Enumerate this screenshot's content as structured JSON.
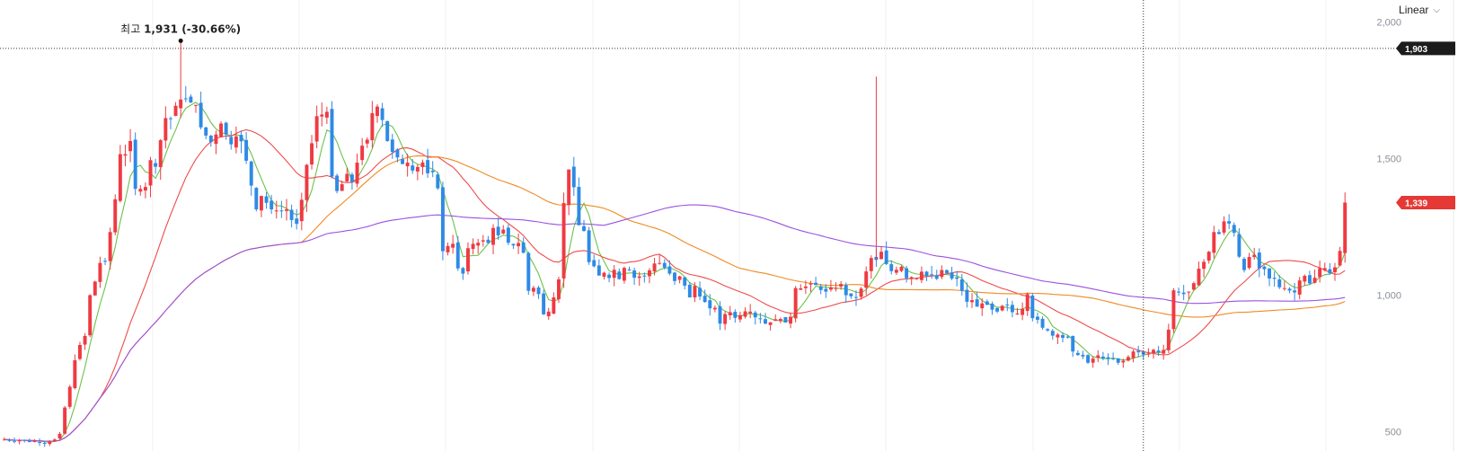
{
  "scale_selector": {
    "label": "Linear"
  },
  "chart_data": {
    "type": "candlestick",
    "y_scale": "linear",
    "ylim": [
      430,
      2080
    ],
    "y_ticks": [
      {
        "value": 2000,
        "label": "2,000"
      },
      {
        "value": 1500,
        "label": "1,500"
      },
      {
        "value": 1000,
        "label": "1,000"
      },
      {
        "value": 500,
        "label": "500"
      }
    ],
    "crosshair_price": {
      "value": 1903,
      "label": "1,903"
    },
    "last_price": {
      "value": 1339,
      "label": "1,339"
    },
    "high_annotation": {
      "prefix": "최고",
      "value_label": "1,931 (-30.66%)",
      "value": 1931,
      "bar_index": 35
    },
    "colors": {
      "up": "#ef3a42",
      "down": "#2e8ae6",
      "ma1": "#6cc24a",
      "ma2": "#ee4b4b",
      "ma3": "#f08a24",
      "ma4": "#9b51e0",
      "last_tag": "#e53935",
      "cross_tag": "#1c1c1c"
    },
    "closes": [
      472,
      470,
      466,
      470,
      468,
      464,
      466,
      462,
      458,
      464,
      472,
      493,
      589,
      665,
      762,
      818,
      851,
      1000,
      1050,
      1118,
      1125,
      1231,
      1351,
      1516,
      1516,
      1564,
      1389,
      1389,
      1396,
      1494,
      1470,
      1567,
      1648,
      1646,
      1693,
      1716,
      1718,
      1705,
      1696,
      1614,
      1584,
      1560,
      1588,
      1628,
      1588,
      1552,
      1581,
      1563,
      1492,
      1401,
      1314,
      1363,
      1338,
      1314,
      1310,
      1309,
      1314,
      1275,
      1261,
      1349,
      1477,
      1556,
      1655,
      1661,
      1671,
      1434,
      1381,
      1406,
      1444,
      1414,
      1485,
      1547,
      1569,
      1666,
      1690,
      1641,
      1564,
      1524,
      1504,
      1480,
      1485,
      1456,
      1469,
      1486,
      1446,
      1450,
      1391,
      1161,
      1180,
      1188,
      1098,
      1079,
      1172,
      1188,
      1192,
      1201,
      1191,
      1246,
      1219,
      1240,
      1192,
      1182,
      1191,
      1155,
      1016,
      1027,
      1004,
      930,
      940,
      992,
      1058,
      1337,
      1460,
      1395,
      1256,
      1235,
      1121,
      1106,
      1072,
      1082,
      1063,
      1093,
      1059,
      1100,
      1092,
      1064,
      1069,
      1070,
      1091,
      1116,
      1118,
      1101,
      1079,
      1052,
      1069,
      1035,
      992,
      1034,
      995,
      975,
      952,
      954,
      896,
      931,
      938,
      917,
      927,
      941,
      940,
      919,
      914,
      896,
      901,
      912,
      913,
      900,
      921,
      1026,
      1025,
      1032,
      1043,
      1037,
      1019,
      1013,
      1028,
      1027,
      1041,
      1000,
      996,
      990,
      1024,
      1087,
      1136,
      1129,
      1159,
      1114,
      1088,
      1093,
      1104,
      1062,
      1066,
      1062,
      1086,
      1071,
      1073,
      1060,
      1092,
      1081,
      1061,
      1060,
      1016,
      976,
      982,
      958,
      970,
      965,
      947,
      940,
      961,
      965,
      938,
      933,
      950,
      1004,
      916,
      910,
      881,
      871,
      852,
      856,
      844,
      845,
      794,
      781,
      776,
      753,
      768,
      780,
      768,
      767,
      766,
      753,
      760,
      774,
      794,
      791,
      783,
      787,
      800,
      791,
      800,
      874,
      1018,
      1010,
      1004,
      1013,
      1044,
      1097,
      1122,
      1159,
      1231,
      1224,
      1270,
      1262,
      1228,
      1141,
      1092,
      1140,
      1148,
      1098,
      1095,
      1061,
      1060,
      1029,
      1026,
      1017,
      1010,
      1054,
      1071,
      1043,
      1064,
      1099,
      1099,
      1080,
      1102,
      1162,
      1339
    ]
  }
}
